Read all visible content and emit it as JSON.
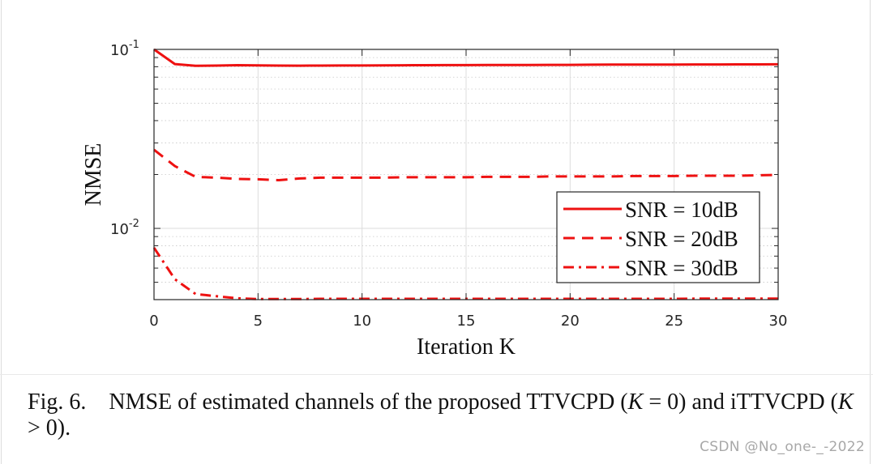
{
  "chart_data": {
    "type": "line",
    "xscale": "linear",
    "yscale": "log",
    "xlim": [
      0,
      30
    ],
    "ylim": [
      0.004,
      0.1
    ],
    "xlabel": "Iteration K",
    "ylabel": "NMSE",
    "xticks": [
      0,
      5,
      10,
      15,
      20,
      25,
      30
    ],
    "xtick_labels": [
      "0",
      "5",
      "10",
      "15",
      "20",
      "25",
      "30"
    ],
    "yticks": [
      {
        "value": 0.1,
        "base": "10",
        "exp": "-1"
      },
      {
        "value": 0.01,
        "base": "10",
        "exp": "-2"
      }
    ],
    "grid": true,
    "minor_grid": true,
    "legend_position": "lower-right",
    "series": [
      {
        "name": "SNR = 10dB",
        "style": "solid",
        "color": "#ee1111",
        "x": [
          0,
          1,
          2,
          3,
          4,
          5,
          6,
          7,
          8,
          9,
          10,
          11,
          12,
          13,
          14,
          15,
          16,
          17,
          18,
          19,
          20,
          21,
          22,
          23,
          24,
          25,
          26,
          27,
          28,
          29,
          30
        ],
        "y": [
          0.1,
          0.0828,
          0.081,
          0.0812,
          0.0816,
          0.0814,
          0.0812,
          0.0811,
          0.0812,
          0.0813,
          0.0813,
          0.0814,
          0.0815,
          0.0816,
          0.0817,
          0.0817,
          0.0818,
          0.0819,
          0.0819,
          0.082,
          0.082,
          0.0821,
          0.0822,
          0.0822,
          0.0823,
          0.0823,
          0.0824,
          0.0824,
          0.0825,
          0.0825,
          0.0826
        ]
      },
      {
        "name": "SNR = 20dB",
        "style": "dashed",
        "color": "#ee1111",
        "x": [
          0,
          1,
          2,
          3,
          4,
          5,
          6,
          7,
          8,
          9,
          10,
          11,
          12,
          13,
          14,
          15,
          16,
          17,
          18,
          19,
          20,
          21,
          22,
          23,
          24,
          25,
          26,
          27,
          28,
          29,
          30
        ],
        "y": [
          0.0275,
          0.0223,
          0.0194,
          0.0192,
          0.0189,
          0.0188,
          0.0186,
          0.019,
          0.0192,
          0.0192,
          0.0192,
          0.0192,
          0.0193,
          0.0193,
          0.0193,
          0.0193,
          0.0194,
          0.0194,
          0.0194,
          0.0195,
          0.0195,
          0.0195,
          0.0195,
          0.0196,
          0.0196,
          0.0196,
          0.0197,
          0.0197,
          0.0197,
          0.0198,
          0.0199
        ]
      },
      {
        "name": "SNR = 30dB",
        "style": "dashdot",
        "color": "#ee1111",
        "x": [
          0,
          1,
          2,
          3,
          4,
          5,
          6,
          7,
          8,
          9,
          10,
          11,
          12,
          13,
          14,
          15,
          16,
          17,
          18,
          19,
          20,
          21,
          22,
          23,
          24,
          25,
          26,
          27,
          28,
          29,
          30
        ],
        "y": [
          0.0078,
          0.0052,
          0.0043,
          0.00418,
          0.00407,
          0.00403,
          0.00403,
          0.00403,
          0.00404,
          0.00404,
          0.00404,
          0.00404,
          0.00404,
          0.00404,
          0.00404,
          0.00404,
          0.00404,
          0.00404,
          0.00404,
          0.00404,
          0.00404,
          0.00404,
          0.00404,
          0.00404,
          0.00404,
          0.00404,
          0.00405,
          0.00405,
          0.00405,
          0.00405,
          0.00405
        ]
      }
    ]
  },
  "caption": {
    "label": "Fig. 6.",
    "text_before": "NMSE of estimated channels of the proposed TTVCPD (",
    "math1_var": "K",
    "math1_rest": " = 0)",
    "text_middle": " and iTTVCPD (",
    "math2_var": "K",
    "math2_rest": " > 0)",
    "text_end": "."
  },
  "watermark": "CSDN @No_one-_-2022"
}
